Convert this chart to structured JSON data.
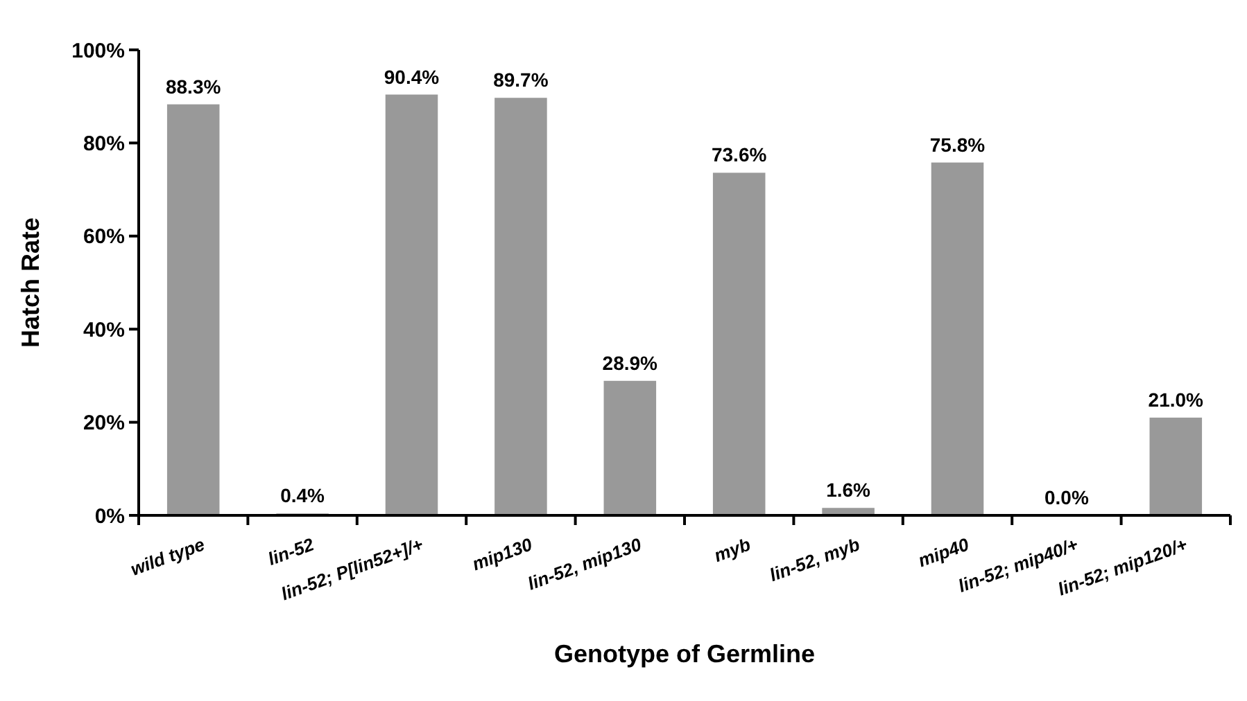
{
  "chart_data": {
    "type": "bar",
    "xlabel": "Genotype of Germline",
    "ylabel": "Hatch Rate",
    "categories": [
      "wild type",
      "lin-52",
      "lin-52; P[lin52+]/+",
      "mip130",
      "lin-52, mip130",
      "myb",
      "lin-52, myb",
      "mip40",
      "lin-52; mip40/+",
      "lin-52; mip120/+"
    ],
    "values": [
      88.3,
      0.4,
      90.4,
      89.7,
      28.9,
      73.6,
      1.6,
      75.8,
      0.0,
      21.0
    ],
    "value_labels": [
      "88.3%",
      "0.4%",
      "90.4%",
      "89.7%",
      "28.9%",
      "73.6%",
      "1.6%",
      "75.8%",
      "0.0%",
      "21.0%"
    ],
    "color": "#999999",
    "ylim": [
      0,
      100
    ],
    "yticks": [
      {
        "value": 0,
        "label": "0%"
      },
      {
        "value": 20,
        "label": "20%"
      },
      {
        "value": 40,
        "label": "40%"
      },
      {
        "value": 60,
        "label": "60%"
      },
      {
        "value": 80,
        "label": "80%"
      },
      {
        "value": 100,
        "label": "100%"
      }
    ],
    "grid": false
  }
}
